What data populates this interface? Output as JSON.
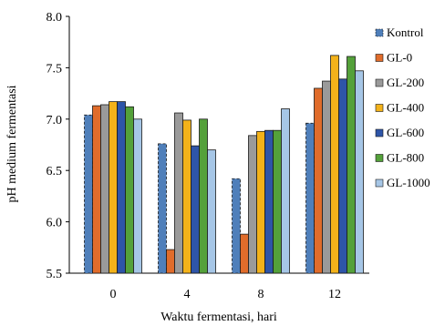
{
  "chart_data": {
    "type": "bar",
    "title": "",
    "xlabel": "Waktu fermentasi, hari",
    "ylabel": "pH medium fermentasi",
    "ylim": [
      5.5,
      8.0
    ],
    "yticks": [
      "5.5",
      "6.0",
      "6.5",
      "7.0",
      "7.5",
      "8.0"
    ],
    "categories": [
      "0",
      "4",
      "8",
      "12"
    ],
    "grid": false,
    "legend_position": "right",
    "series": [
      {
        "name": "Kontrol",
        "color": "#4f7fba",
        "pattern": "dashed-outline",
        "values": [
          7.04,
          6.76,
          6.42,
          6.96
        ]
      },
      {
        "name": "GL-0",
        "color": "#e06c2b",
        "values": [
          7.13,
          5.73,
          5.88,
          7.3
        ]
      },
      {
        "name": "GL-200",
        "color": "#9a9a9a",
        "values": [
          7.14,
          7.06,
          6.84,
          7.37
        ]
      },
      {
        "name": "GL-400",
        "color": "#f3b21a",
        "values": [
          7.17,
          6.99,
          6.88,
          7.62
        ]
      },
      {
        "name": "GL-600",
        "color": "#2e55a8",
        "values": [
          7.17,
          6.74,
          6.89,
          7.39
        ]
      },
      {
        "name": "GL-800",
        "color": "#54a13a",
        "values": [
          7.12,
          7.0,
          6.89,
          7.61
        ]
      },
      {
        "name": "GL-1000",
        "color": "#a6c6e6",
        "values": [
          7.0,
          6.7,
          7.1,
          7.47
        ]
      }
    ]
  }
}
